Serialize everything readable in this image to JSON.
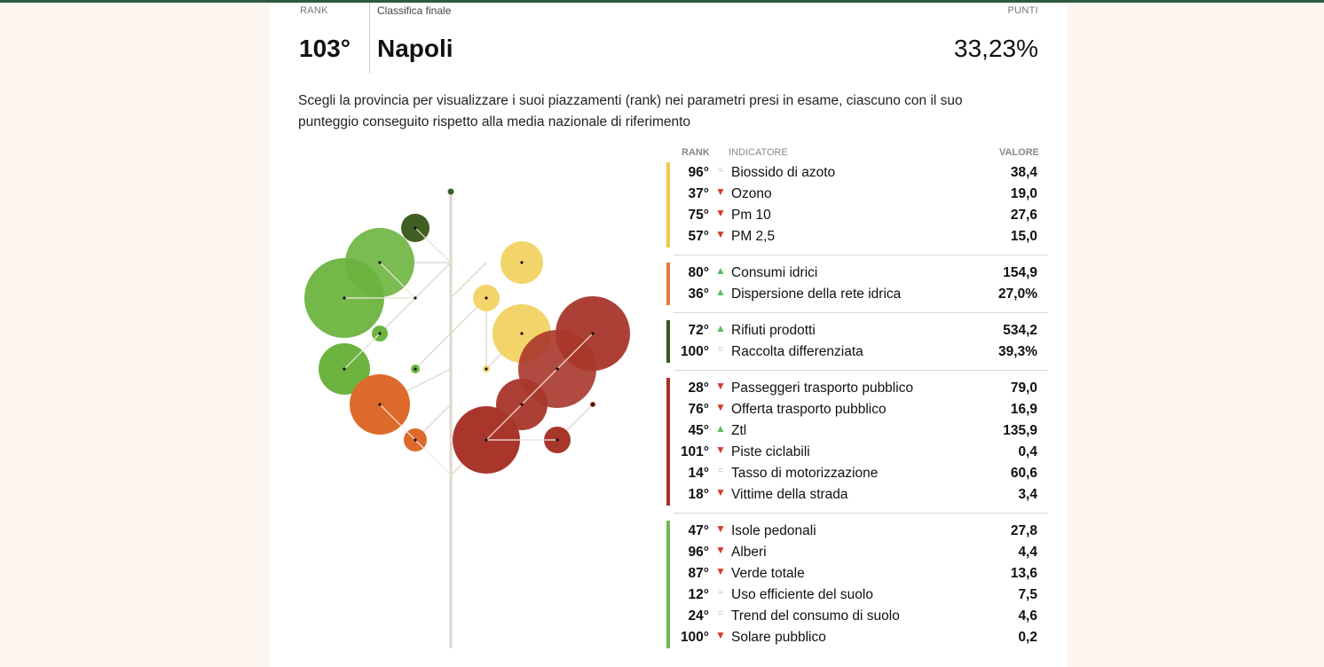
{
  "header": {
    "rank_label": "RANK",
    "classifica_label": "Classifica finale",
    "punti_label": "PUNTI",
    "rank": "103°",
    "city": "Napoli",
    "score": "33,23%"
  },
  "description": "Scegli la provincia per visualizzare i suoi piazzamenti (rank) nei parametri presi in esame, ciascuno con il suo punteggio conseguito rispetto alla media nazionale di riferimento",
  "table": {
    "col_rank": "RANK",
    "col_indicator": "INDICATORE",
    "col_value": "VALORE",
    "groups": [
      {
        "color": "#f0c84a",
        "rows": [
          {
            "rank": "96°",
            "trend": "eq",
            "name": "Biossido di azoto",
            "value": "38,4"
          },
          {
            "rank": "37°",
            "trend": "down",
            "name": "Ozono",
            "value": "19,0"
          },
          {
            "rank": "75°",
            "trend": "down",
            "name": "Pm 10",
            "value": "27,6"
          },
          {
            "rank": "57°",
            "trend": "down",
            "name": "PM 2,5",
            "value": "15,0"
          }
        ]
      },
      {
        "color": "#e07a36",
        "rows": [
          {
            "rank": "80°",
            "trend": "up",
            "name": "Consumi idrici",
            "value": "154,9"
          },
          {
            "rank": "36°",
            "trend": "up",
            "name": "Dispersione della rete idrica",
            "value": "27,0%"
          }
        ]
      },
      {
        "color": "#2f5a24",
        "rows": [
          {
            "rank": "72°",
            "trend": "up",
            "name": "Rifiuti prodotti",
            "value": "534,2"
          },
          {
            "rank": "100°",
            "trend": "eq",
            "name": "Raccolta differenziata",
            "value": "39,3%"
          }
        ]
      },
      {
        "color": "#a8312a",
        "rows": [
          {
            "rank": "28°",
            "trend": "down",
            "name": "Passeggeri trasporto pubblico",
            "value": "79,0"
          },
          {
            "rank": "76°",
            "trend": "down",
            "name": "Offerta trasporto pubblico",
            "value": "16,9"
          },
          {
            "rank": "45°",
            "trend": "up",
            "name": "Ztl",
            "value": "135,9"
          },
          {
            "rank": "101°",
            "trend": "down",
            "name": "Piste ciclabili",
            "value": "0,4"
          },
          {
            "rank": "14°",
            "trend": "eq",
            "name": "Tasso di motorizzazione",
            "value": "60,6"
          },
          {
            "rank": "18°",
            "trend": "down",
            "name": "Vittime della strada",
            "value": "3,4"
          }
        ]
      },
      {
        "color": "#6cb85a",
        "rows": [
          {
            "rank": "47°",
            "trend": "down",
            "name": "Isole pedonali",
            "value": "27,8"
          },
          {
            "rank": "96°",
            "trend": "down",
            "name": "Alberi",
            "value": "4,4"
          },
          {
            "rank": "87°",
            "trend": "down",
            "name": "Verde totale",
            "value": "13,6"
          },
          {
            "rank": "12°",
            "trend": "eq",
            "name": "Uso efficiente del suolo",
            "value": "7,5"
          },
          {
            "rank": "24°",
            "trend": "eq",
            "name": "Trend del consumo di suolo",
            "value": "4,6"
          },
          {
            "rank": "100°",
            "trend": "down",
            "name": "Solare pubblico",
            "value": "0,2"
          }
        ]
      }
    ]
  },
  "trend_glyphs": {
    "up": "▲",
    "down": "▼",
    "eq": "="
  },
  "tree_colors": {
    "aria": "#f3d46b",
    "acqua": "#dd6a2a",
    "rifiuti": "#3e5e22",
    "mobilita": "#a9362b",
    "suolo": "#6cb43f"
  }
}
